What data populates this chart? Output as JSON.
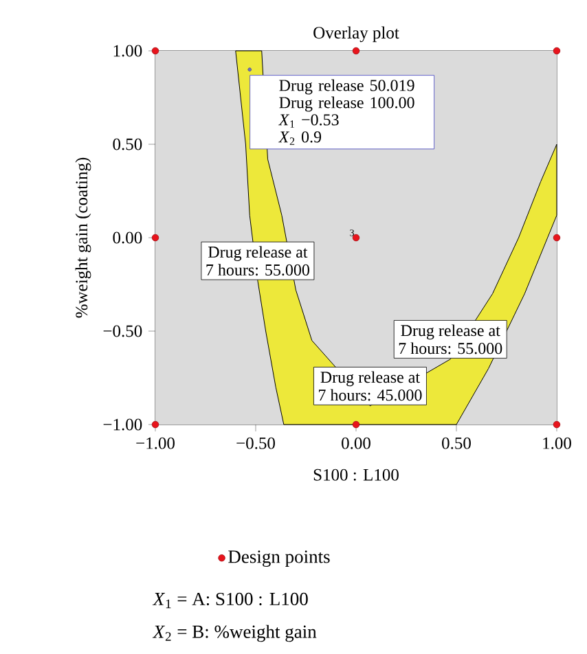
{
  "chart_data": {
    "type": "scatter",
    "title": "Overlay plot",
    "xlabel": "S100 : L100",
    "ylabel": "%weight gain (coating)",
    "xlim": [
      -1,
      1
    ],
    "ylim": [
      -1,
      1
    ],
    "xticks": [
      {
        "value": -1,
        "label": "−1.00"
      },
      {
        "value": -0.5,
        "label": "−0.50"
      },
      {
        "value": 0,
        "label": "0.00"
      },
      {
        "value": 0.5,
        "label": "0.50"
      },
      {
        "value": 1,
        "label": "1.00"
      }
    ],
    "yticks": [
      {
        "value": -1,
        "label": "−1.00"
      },
      {
        "value": -0.5,
        "label": "−0.50"
      },
      {
        "value": 0,
        "label": "0.00"
      },
      {
        "value": 0.5,
        "label": "0.50"
      },
      {
        "value": 1,
        "label": "1.00"
      }
    ],
    "series": [
      {
        "type": "area",
        "color": "#ede83a",
        "x": [
          -0.6,
          -0.55,
          -0.53,
          -0.49,
          -0.45,
          -0.4,
          -0.36,
          0.5,
          0.66,
          0.84,
          1,
          1,
          0.92,
          0.81,
          0.68,
          0.47,
          0.07,
          -0.22,
          -0.3,
          -0.37,
          -0.44,
          -0.47
        ],
        "values": [
          1,
          0.5,
          0.12,
          -0.23,
          -0.5,
          -0.8,
          -1,
          -1,
          -0.7,
          -0.3,
          0.12,
          0.5,
          0.3,
          0,
          -0.3,
          -0.65,
          -0.9,
          -0.55,
          -0.28,
          0.12,
          0.42,
          1
        ]
      },
      {
        "color": "#7070c0",
        "marker": "circle",
        "x": [
          -0.53
        ],
        "values": [
          0.9
        ]
      },
      {
        "name": "Design points",
        "color": "#e8141c",
        "marker": "circle",
        "x": [
          -1,
          0,
          1,
          -1,
          0,
          1,
          -1,
          0,
          1
        ],
        "values": [
          1,
          1,
          1,
          0,
          0,
          0,
          -1,
          -1,
          -1
        ]
      }
    ],
    "legend": "bottom",
    "annotations": [
      "*X*$_{1}$ = A: S100 : L100",
      "*X*$_{2}$ = B: %weight gain",
      {
        "text": "Drug release 50.019",
        "x": -0.53,
        "y": 0.9
      },
      "Drug release 100.00",
      "*X*$_{1}$ −0.53",
      "*X*$_{2}$ 0.9",
      {
        "text": "3",
        "x": 0,
        "y": 0
      },
      {
        "text": "Drug release at",
        "x": -0.49,
        "y": -0.23
      },
      "7 hours: 55.000",
      {
        "text": "Drug release at",
        "x": 0.47,
        "y": -0.65
      },
      "7 hours: 55.000",
      {
        "text": "Drug release at",
        "x": 0.07,
        "y": -0.9
      },
      "7 hours: 45.000"
    ]
  }
}
